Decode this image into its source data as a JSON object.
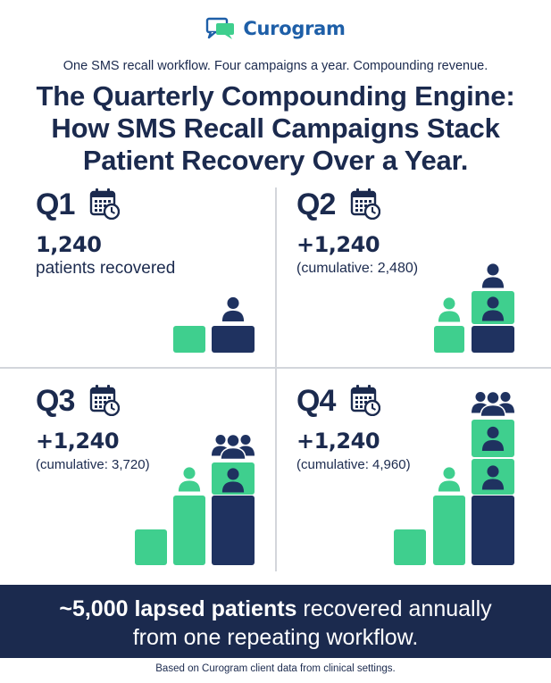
{
  "brand": {
    "name": "Curogram",
    "logo_icon": "chat-bubbles-icon",
    "color": "#1e5fa8"
  },
  "tagline": "One SMS recall workflow. Four campaigns a year. Compounding revenue.",
  "headline": {
    "line1": "The Quarterly Compounding Engine:",
    "line2": "How SMS Recall Campaigns Stack",
    "line3": "Patient Recovery Over a Year."
  },
  "colors": {
    "navy": "#1f3260",
    "green": "#3fcf8e",
    "text": "#1b2a4e"
  },
  "quarters": [
    {
      "label": "Q1",
      "value": "1,240",
      "sub": "patients recovered",
      "icon": "calendar-clock-icon"
    },
    {
      "label": "Q2",
      "value": "+1,240",
      "sub": "(cumulative: 2,480)",
      "icon": "calendar-clock-icon"
    },
    {
      "label": "Q3",
      "value": "+1,240",
      "sub": "(cumulative: 3,720)",
      "icon": "calendar-clock-icon"
    },
    {
      "label": "Q4",
      "value": "+1,240",
      "sub": "(cumulative: 4,960)",
      "icon": "calendar-clock-icon"
    }
  ],
  "banner": {
    "bold": "~5,000 lapsed patients",
    "rest1": " recovered annually",
    "line2": "from one repeating workflow."
  },
  "footnote": "Based on Curogram client data from clinical settings."
}
